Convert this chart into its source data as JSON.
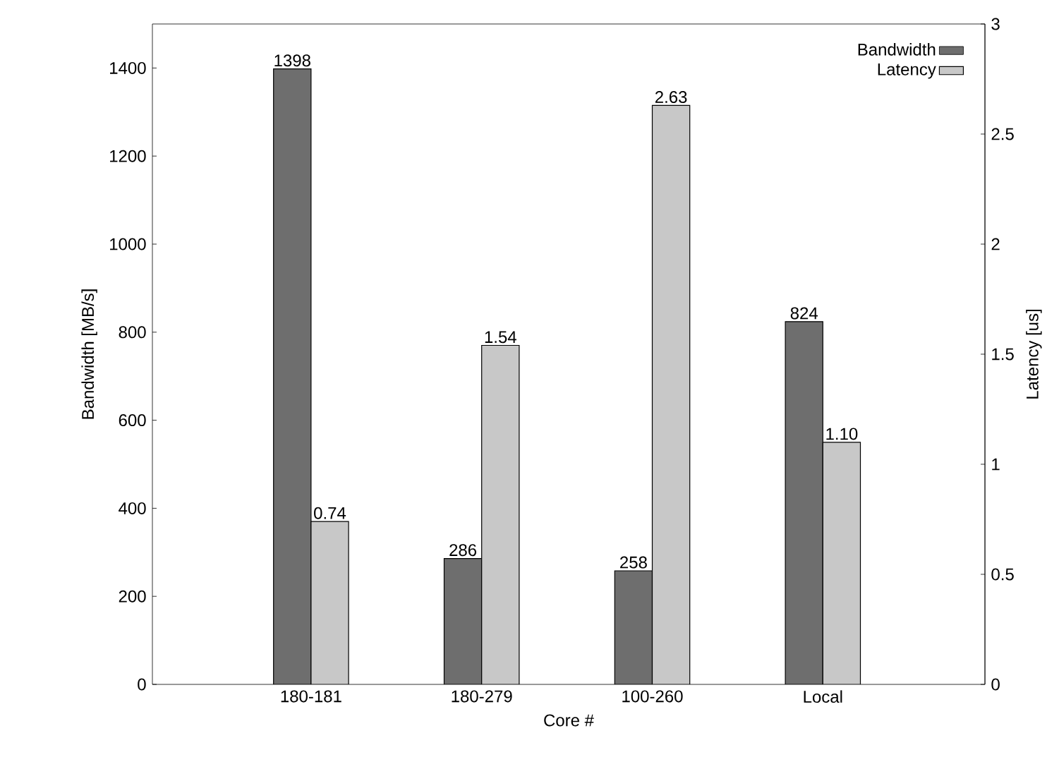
{
  "chart_data": {
    "type": "bar",
    "xlabel": "Core #",
    "ylabel": "Bandwidth [MB/s]",
    "y2label": "Latency [us]",
    "categories": [
      "180-181",
      "180-279",
      "100-260",
      "Local"
    ],
    "series": [
      {
        "name": "Bandwidth",
        "color": "#6e6e6e",
        "values": [
          1398,
          286,
          258,
          824
        ],
        "value_labels": [
          "1398",
          "286",
          "258",
          "824"
        ]
      },
      {
        "name": "Latency",
        "color": "#c8c8c8",
        "axis": "y2",
        "values": [
          0.74,
          1.54,
          2.63,
          1.1
        ],
        "value_labels": [
          "0.74",
          "1.54",
          "2.63",
          "1.10"
        ]
      }
    ],
    "ylim": [
      0,
      1500
    ],
    "yticks": [
      0,
      200,
      400,
      600,
      800,
      1000,
      1200,
      1400
    ],
    "y2lim": [
      0,
      3
    ],
    "y2ticks": [
      0,
      0.5,
      1,
      1.5,
      2,
      2.5,
      3
    ],
    "legend": "top right",
    "grid": false
  }
}
